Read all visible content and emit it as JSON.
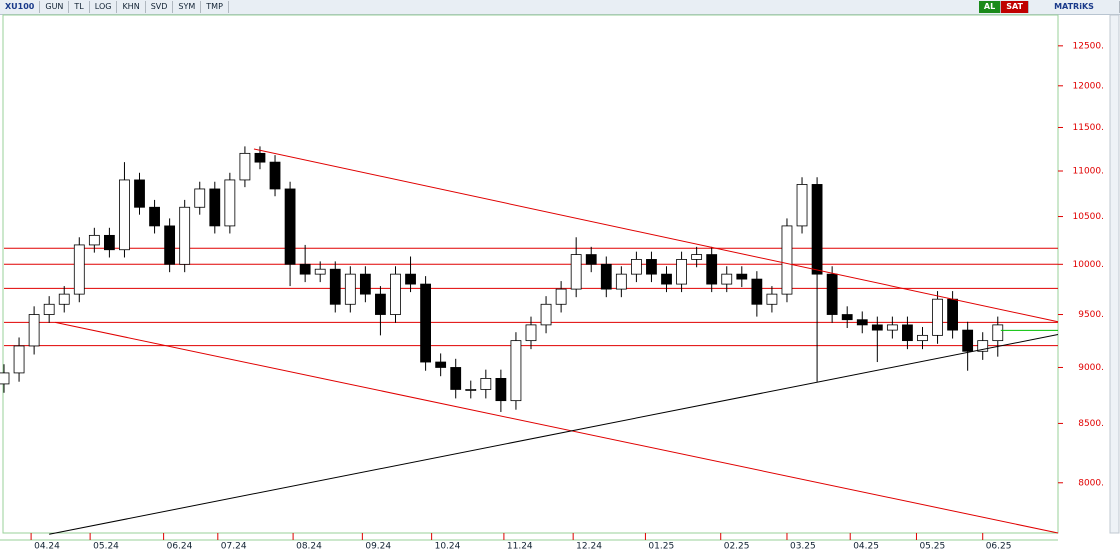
{
  "toolbar": {
    "symbol": "XU100",
    "buttons": [
      "GUN",
      "TL",
      "LOG",
      "KHN",
      "SVD",
      "SYM",
      "TMP"
    ],
    "buy": "AL",
    "sell": "SAT",
    "brand": "MATRiKS"
  },
  "chart_data": {
    "type": "candlestick",
    "log_scale": true,
    "up_color": "#ffffff",
    "down_color": "#000000",
    "axis_color": "#e00000",
    "x": [
      0,
      5,
      10,
      15,
      20,
      25,
      30,
      35,
      40,
      45,
      50,
      55,
      60,
      65,
      70,
      75,
      80,
      85,
      90,
      95,
      100,
      105,
      110,
      115,
      120,
      125,
      130,
      135,
      140,
      145,
      150,
      155,
      160,
      165,
      170,
      175,
      180,
      185,
      190,
      195,
      200,
      205,
      210,
      215,
      220,
      225,
      230,
      235,
      240,
      245,
      250,
      255,
      260,
      265,
      270,
      275,
      280,
      285,
      290,
      295,
      300,
      305,
      310,
      315,
      320,
      325,
      330
    ],
    "open": [
      8850,
      8950,
      9200,
      9500,
      9600,
      9700,
      10200,
      10300,
      10150,
      10900,
      10600,
      10400,
      10000,
      10600,
      10800,
      10400,
      10900,
      11200,
      11100,
      10800,
      10000,
      9900,
      9950,
      9600,
      9900,
      9700,
      9500,
      9900,
      9800,
      9050,
      9000,
      8800,
      8800,
      8900,
      8700,
      9250,
      9400,
      9600,
      9750,
      10100,
      10000,
      9750,
      9900,
      10050,
      9900,
      9800,
      10050,
      10100,
      9800,
      9900,
      9850,
      9600,
      9700,
      10400,
      10850,
      9900,
      9500,
      9450,
      9400,
      9350,
      9400,
      9250,
      9300,
      9650,
      9350,
      9150,
      9250
    ],
    "high": [
      9030,
      9280,
      9580,
      9680,
      9780,
      10280,
      10380,
      10380,
      11100,
      10980,
      10680,
      10480,
      10680,
      10880,
      10880,
      10980,
      11280,
      11280,
      11180,
      10880,
      10200,
      10030,
      10030,
      9980,
      9980,
      9780,
      9980,
      10080,
      9880,
      9130,
      9080,
      8880,
      8980,
      8980,
      9330,
      9480,
      9680,
      9830,
      10280,
      10180,
      10080,
      9980,
      10130,
      10130,
      9980,
      10130,
      10180,
      10180,
      9980,
      9980,
      9930,
      9780,
      10480,
      10930,
      10930,
      9980,
      9580,
      9530,
      9480,
      9480,
      9480,
      9380,
      9730,
      9730,
      9430,
      9330,
      9480
    ],
    "low": [
      8770,
      8870,
      9120,
      9420,
      9520,
      9620,
      10120,
      10070,
      10070,
      10520,
      10320,
      9920,
      9920,
      10520,
      10320,
      10320,
      10820,
      11020,
      10720,
      9780,
      9820,
      9820,
      9520,
      9520,
      9620,
      9300,
      9420,
      9720,
      8970,
      8920,
      8720,
      8720,
      8720,
      8600,
      8620,
      9170,
      9320,
      9520,
      9670,
      9920,
      9670,
      9670,
      9820,
      9820,
      9720,
      9720,
      9970,
      9720,
      9720,
      9770,
      9480,
      9520,
      9620,
      10320,
      8870,
      9420,
      9370,
      9320,
      9050,
      9270,
      9170,
      9170,
      9220,
      9270,
      8970,
      9070,
      9100
    ],
    "close": [
      8950,
      9200,
      9500,
      9600,
      9700,
      10200,
      10300,
      10150,
      10900,
      10600,
      10400,
      10000,
      10600,
      10800,
      10400,
      10900,
      11200,
      11100,
      10800,
      10000,
      9900,
      9950,
      9600,
      9900,
      9700,
      9500,
      9900,
      9800,
      9050,
      9000,
      8800,
      8800,
      8900,
      8700,
      9250,
      9400,
      9600,
      9750,
      10100,
      10000,
      9750,
      9900,
      10050,
      9900,
      9800,
      10050,
      10100,
      9800,
      9900,
      9850,
      9600,
      9700,
      10400,
      10850,
      9900,
      9500,
      9450,
      9400,
      9350,
      9400,
      9250,
      9300,
      9650,
      9350,
      9150,
      9250,
      9400
    ],
    "xlim": [
      0,
      350
    ],
    "xticks": [
      {
        "value": 9,
        "label": "04.24"
      },
      {
        "value": 28.6,
        "label": "05.24"
      },
      {
        "value": 53,
        "label": "06.24"
      },
      {
        "value": 71,
        "label": "07.24"
      },
      {
        "value": 96,
        "label": "08.24"
      },
      {
        "value": 119,
        "label": "09.24"
      },
      {
        "value": 142,
        "label": "10.24"
      },
      {
        "value": 166,
        "label": "11.24"
      },
      {
        "value": 189,
        "label": "12.24"
      },
      {
        "value": 213,
        "label": "01.25"
      },
      {
        "value": 238,
        "label": "02.25"
      },
      {
        "value": 260,
        "label": "03.25"
      },
      {
        "value": 281,
        "label": "04.25"
      },
      {
        "value": 303,
        "label": "05.25"
      },
      {
        "value": 325,
        "label": "06.25"
      }
    ],
    "ylim": [
      7600,
      12900
    ],
    "yticks": [
      {
        "value": 12500,
        "label": "12500."
      },
      {
        "value": 12000,
        "label": "12000."
      },
      {
        "value": 11500,
        "label": "11500."
      },
      {
        "value": 11000,
        "label": "11000."
      },
      {
        "value": 10500,
        "label": "10500."
      },
      {
        "value": 10000,
        "label": "10000."
      },
      {
        "value": 9500,
        "label": "9500."
      },
      {
        "value": 9000,
        "label": "9000."
      },
      {
        "value": 8500,
        "label": "8500."
      },
      {
        "value": 8000,
        "label": "8000."
      }
    ],
    "levels": [
      10165,
      10000,
      9757,
      9424,
      9203
    ],
    "level_color": "#e00000",
    "trendlines": [
      {
        "x": [
          83,
          350
        ],
        "y": [
          11250,
          9430
        ],
        "color": "#e00000"
      },
      {
        "x": [
          17,
          350
        ],
        "y": [
          9424,
          7600
        ],
        "color": "#e00000"
      },
      {
        "x": [
          15,
          350
        ],
        "y": [
          7590,
          9308
        ],
        "color": "#000000"
      },
      {
        "x": [
          331,
          350
        ],
        "y": [
          9347,
          9347
        ],
        "color": "#00c000"
      }
    ]
  }
}
